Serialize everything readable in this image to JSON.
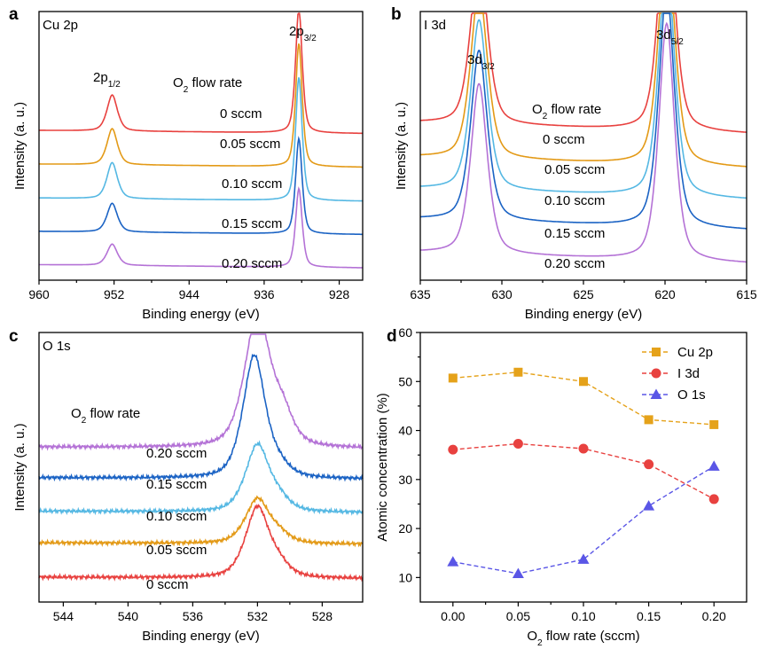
{
  "chart_data": [
    {
      "id": "a",
      "type": "line",
      "panel_label": "a",
      "title": "Cu 2p",
      "xlabel": "Binding energy (eV)",
      "ylabel": "Intensity (a. u.)",
      "xlim": [
        960,
        925.5
      ],
      "xticks": [
        960,
        952,
        944,
        936,
        928
      ],
      "xtick_labels": [
        "960",
        "952",
        "944",
        "936",
        "928"
      ],
      "legend_title_main": "O",
      "legend_title_sub": "2",
      "legend_title_rest": " flow rate",
      "peak_labels": [
        {
          "main": "2p",
          "sub": "1/2",
          "x": 952.2
        },
        {
          "main": "2p",
          "sub": "3/2",
          "x": 932.3
        }
      ],
      "series": [
        {
          "name": "0 sccm",
          "color": "#e8413f",
          "base": 0.8,
          "slope": 0.017,
          "peaks": [
            {
              "x": 952.2,
              "h": 0.195,
              "w": 0.6
            },
            {
              "x": 932.3,
              "h": 0.675,
              "w": 0.38
            }
          ]
        },
        {
          "name": "0.05 sccm",
          "color": "#e39a17",
          "base": 0.618,
          "slope": 0.017,
          "peaks": [
            {
              "x": 952.2,
              "h": 0.195,
              "w": 0.6
            },
            {
              "x": 932.3,
              "h": 0.665,
              "w": 0.38
            }
          ]
        },
        {
          "name": "0.10 sccm",
          "color": "#55b8e3",
          "base": 0.435,
          "slope": 0.017,
          "peaks": [
            {
              "x": 952.2,
              "h": 0.195,
              "w": 0.6
            },
            {
              "x": 932.3,
              "h": 0.665,
              "w": 0.38
            }
          ]
        },
        {
          "name": "0.15 sccm",
          "color": "#1b63c4",
          "base": 0.255,
          "slope": 0.017,
          "peaks": [
            {
              "x": 952.2,
              "h": 0.155,
              "w": 0.6
            },
            {
              "x": 932.3,
              "h": 0.515,
              "w": 0.38
            }
          ]
        },
        {
          "name": "0.20 sccm",
          "color": "#b472d6",
          "base": 0.075,
          "slope": 0.017,
          "peaks": [
            {
              "x": 952.2,
              "h": 0.115,
              "w": 0.6
            },
            {
              "x": 932.3,
              "h": 0.425,
              "w": 0.38
            }
          ]
        }
      ]
    },
    {
      "id": "b",
      "type": "line",
      "panel_label": "b",
      "title": "I 3d",
      "xlabel": "Binding energy (eV)",
      "ylabel": "Intensity (a. u.)",
      "xlim": [
        635,
        615
      ],
      "xticks": [
        635,
        630,
        625,
        620,
        615
      ],
      "xtick_labels": [
        "635",
        "630",
        "625",
        "620",
        "615"
      ],
      "legend_title_main": "O",
      "legend_title_sub": "2",
      "legend_title_rest": " flow rate",
      "peak_labels": [
        {
          "main": "3d",
          "sub": "3/2",
          "x": 631.4
        },
        {
          "main": "3d",
          "sub": "5/2",
          "x": 619.9
        }
      ],
      "series": [
        {
          "name": "0 sccm",
          "color": "#e8413f",
          "base": 0.82,
          "slope": 0.06,
          "peaks": [
            {
              "x": 631.4,
              "h": 0.92,
              "w": 0.55
            },
            {
              "x": 619.9,
              "h": 1.28,
              "w": 0.52
            }
          ]
        },
        {
          "name": "0.05 sccm",
          "color": "#e39a17",
          "base": 0.635,
          "slope": 0.06,
          "peaks": [
            {
              "x": 631.4,
              "h": 0.92,
              "w": 0.55
            },
            {
              "x": 619.9,
              "h": 1.28,
              "w": 0.52
            }
          ]
        },
        {
          "name": "0.10 sccm",
          "color": "#55b8e3",
          "base": 0.465,
          "slope": 0.06,
          "peaks": [
            {
              "x": 631.4,
              "h": 0.92,
              "w": 0.55
            },
            {
              "x": 619.9,
              "h": 1.28,
              "w": 0.52
            }
          ]
        },
        {
          "name": "0.15 sccm",
          "color": "#1b63c4",
          "base": 0.3,
          "slope": 0.06,
          "peaks": [
            {
              "x": 631.4,
              "h": 0.92,
              "w": 0.55
            },
            {
              "x": 619.9,
              "h": 1.28,
              "w": 0.52
            }
          ]
        },
        {
          "name": "0.20 sccm",
          "color": "#b472d6",
          "base": 0.12,
          "slope": 0.06,
          "peaks": [
            {
              "x": 631.4,
              "h": 0.92,
              "w": 0.55
            },
            {
              "x": 619.9,
              "h": 1.28,
              "w": 0.52
            }
          ]
        }
      ]
    },
    {
      "id": "c",
      "type": "line",
      "panel_label": "c",
      "title": "O 1s",
      "xlabel": "Binding energy (eV)",
      "ylabel": "Intensity (a. u.)",
      "xlim": [
        545.5,
        525.5
      ],
      "xticks": [
        544,
        540,
        536,
        532,
        528
      ],
      "xtick_labels": [
        "544",
        "540",
        "536",
        "532",
        "528"
      ],
      "legend_title_main": "O",
      "legend_title_sub": "2",
      "legend_title_rest": " flow rate",
      "peak_labels": [],
      "series": [
        {
          "name": "0.20 sccm",
          "color": "#b472d6",
          "base": 0.83,
          "slope": 0.008,
          "peaks": [
            {
              "x": 532.0,
              "h": 0.72,
              "w": 0.85
            },
            {
              "x": 530.4,
              "h": 0.15,
              "w": 0.7
            }
          ]
        },
        {
          "name": "0.15 sccm",
          "color": "#1b63c4",
          "base": 0.665,
          "slope": 0.008,
          "peaks": [
            {
              "x": 532.2,
              "h": 0.66,
              "w": 0.75
            },
            {
              "x": 530.6,
              "h": 0.05,
              "w": 0.7
            }
          ]
        },
        {
          "name": "0.10 sccm",
          "color": "#55b8e3",
          "base": 0.485,
          "slope": 0.008,
          "peaks": [
            {
              "x": 532.0,
              "h": 0.36,
              "w": 0.8
            },
            {
              "x": 530.6,
              "h": 0.05,
              "w": 0.7
            }
          ]
        },
        {
          "name": "0.05 sccm",
          "color": "#e39a17",
          "base": 0.315,
          "slope": 0.008,
          "peaks": [
            {
              "x": 532.0,
              "h": 0.24,
              "w": 0.8
            },
            {
              "x": 530.6,
              "h": 0.04,
              "w": 0.7
            }
          ]
        },
        {
          "name": "0 sccm",
          "color": "#e8413f",
          "base": 0.13,
          "slope": 0.008,
          "peaks": [
            {
              "x": 532.0,
              "h": 0.38,
              "w": 0.8
            },
            {
              "x": 530.6,
              "h": 0.05,
              "w": 0.7
            }
          ]
        }
      ]
    },
    {
      "id": "d",
      "type": "scatter",
      "panel_label": "d",
      "title": "",
      "xlabel_main": "O",
      "xlabel_sub": "2",
      "xlabel_rest": " flow rate (sccm)",
      "ylabel": "Atomic concentration (%)",
      "xlim": [
        -0.025,
        0.225
      ],
      "ylim": [
        5,
        60
      ],
      "xticks": [
        0.0,
        0.05,
        0.1,
        0.15,
        0.2
      ],
      "xtick_labels": [
        "0.00",
        "0.05",
        "0.10",
        "0.15",
        "0.20"
      ],
      "yticks": [
        10,
        20,
        30,
        40,
        50,
        60
      ],
      "ytick_labels": [
        "10",
        "20",
        "30",
        "40",
        "50",
        "60"
      ],
      "x": [
        0.0,
        0.05,
        0.1,
        0.15,
        0.2
      ],
      "legend_position": "top-right",
      "series": [
        {
          "name": "Cu 2p",
          "color": "#e5a21a",
          "marker": "square",
          "values": [
            50.7,
            51.9,
            50.0,
            42.2,
            41.2
          ]
        },
        {
          "name": "I 3d",
          "color": "#e8413f",
          "marker": "circle",
          "values": [
            36.1,
            37.3,
            36.3,
            33.1,
            26.0
          ]
        },
        {
          "name": "O 1s",
          "color": "#5a56e6",
          "marker": "triangle",
          "values": [
            13.2,
            10.8,
            13.7,
            24.6,
            32.7
          ]
        }
      ]
    }
  ]
}
